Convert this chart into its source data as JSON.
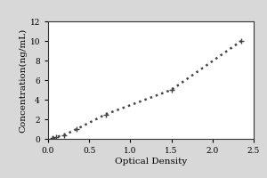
{
  "x_data": [
    0.05,
    0.1,
    0.2,
    0.35,
    0.7,
    1.5,
    2.35
  ],
  "y_data": [
    0.1,
    0.2,
    0.4,
    1.0,
    2.5,
    5.0,
    10.0
  ],
  "xlabel": "Optical Density",
  "ylabel": "Concentration(ng/mL)",
  "xlim": [
    0,
    2.5
  ],
  "ylim": [
    0,
    12
  ],
  "xticks": [
    0,
    0.5,
    1.0,
    1.5,
    2.0,
    2.5
  ],
  "yticks": [
    0,
    2,
    4,
    6,
    8,
    10,
    12
  ],
  "line_color": "#444444",
  "marker": "+",
  "marker_size": 5,
  "linestyle": "dotted",
  "linewidth": 1.8,
  "background_color": "#d8d8d8",
  "plot_bg_color": "#ffffff",
  "tick_fontsize": 6.5,
  "label_fontsize": 7.5,
  "spine_color": "#333333",
  "spine_linewidth": 0.8
}
